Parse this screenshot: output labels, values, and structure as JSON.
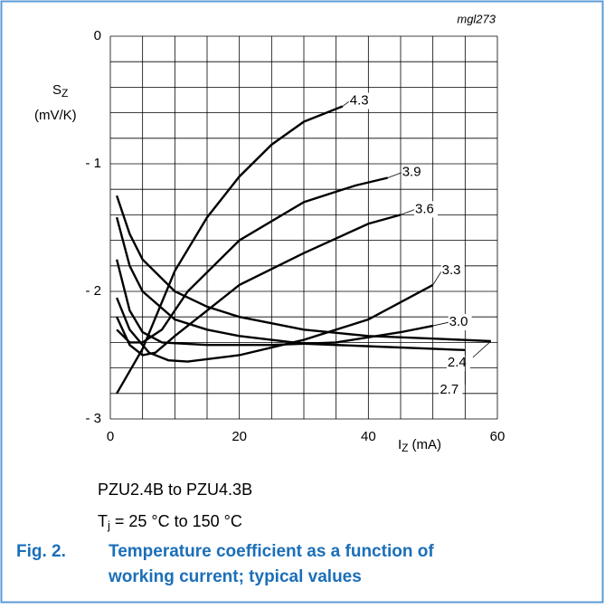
{
  "chart_data": {
    "type": "line",
    "code": "mgl273",
    "y_label_symbol": "S",
    "y_label_sub": "Z",
    "y_label_unit": "(mV/K)",
    "x_label_symbol": "I",
    "x_label_sub": "Z",
    "x_label_unit": "(mA)",
    "xlim": [
      0,
      60
    ],
    "xticks": [
      0,
      20,
      40,
      60
    ],
    "ylim": [
      -3,
      0
    ],
    "yticks": [
      0,
      {
        "value": -1,
        "label": "- 1"
      },
      {
        "value": -2,
        "label": "- 2"
      },
      {
        "value": -3,
        "label": "- 3"
      }
    ],
    "xgrid": [
      0,
      5,
      10,
      15,
      20,
      25,
      30,
      35,
      40,
      45,
      50,
      55,
      60
    ],
    "ygrid": [
      0,
      -0.2,
      -0.4,
      -0.6,
      -0.8,
      -1,
      -1.2,
      -1.4,
      -1.6,
      -1.8,
      -2,
      -2.2,
      -2.4,
      -2.6,
      -2.8,
      -3
    ],
    "color": "#000000",
    "series": [
      {
        "name": "4.3",
        "x": [
          1,
          5,
          10,
          15,
          20,
          25,
          30,
          36
        ],
        "values": [
          -2.8,
          -2.45,
          -1.84,
          -1.42,
          -1.1,
          -0.85,
          -0.67,
          -0.55
        ]
      },
      {
        "name": "3.9",
        "x": [
          1,
          3,
          5,
          8,
          12,
          20,
          30,
          38,
          43
        ],
        "values": [
          -2.3,
          -2.4,
          -2.4,
          -2.3,
          -2.0,
          -1.6,
          -1.3,
          -1.17,
          -1.11
        ]
      },
      {
        "name": "3.6",
        "x": [
          1,
          3,
          5,
          7,
          10,
          15,
          20,
          30,
          40,
          45
        ],
        "values": [
          -2.2,
          -2.42,
          -2.5,
          -2.48,
          -2.35,
          -2.15,
          -1.95,
          -1.7,
          -1.47,
          -1.4
        ]
      },
      {
        "name": "3.3",
        "x": [
          1,
          3,
          6,
          9,
          12,
          20,
          30,
          40,
          50
        ],
        "values": [
          -2.05,
          -2.3,
          -2.48,
          -2.54,
          -2.55,
          -2.5,
          -2.38,
          -2.22,
          -1.95
        ]
      },
      {
        "name": "3.0",
        "x": [
          1,
          3,
          5,
          8,
          15,
          25,
          35,
          45,
          50
        ],
        "values": [
          -1.75,
          -2.15,
          -2.32,
          -2.4,
          -2.42,
          -2.42,
          -2.4,
          -2.32,
          -2.27
        ]
      },
      {
        "name": "2.4",
        "x": [
          1,
          3,
          5,
          10,
          15,
          20,
          30,
          40,
          50,
          59
        ],
        "values": [
          -1.25,
          -1.55,
          -1.75,
          -2.0,
          -2.12,
          -2.2,
          -2.3,
          -2.35,
          -2.37,
          -2.39
        ]
      },
      {
        "name": "2.7",
        "x": [
          1,
          3,
          5,
          10,
          15,
          20,
          30,
          40,
          50,
          55
        ],
        "values": [
          -1.42,
          -1.8,
          -2.0,
          -2.22,
          -2.3,
          -2.35,
          -2.41,
          -2.43,
          -2.45,
          -2.46
        ]
      }
    ]
  },
  "notes": {
    "range": "PZU2.4B to PZU4.3B",
    "temp_symbol": "T",
    "temp_sub": "j",
    "temp_rest": "= 25 °C to 150 °C"
  },
  "caption": {
    "number": "Fig. 2.",
    "line1": "Temperature coefficient as a function of",
    "line2": "working current; typical values"
  }
}
